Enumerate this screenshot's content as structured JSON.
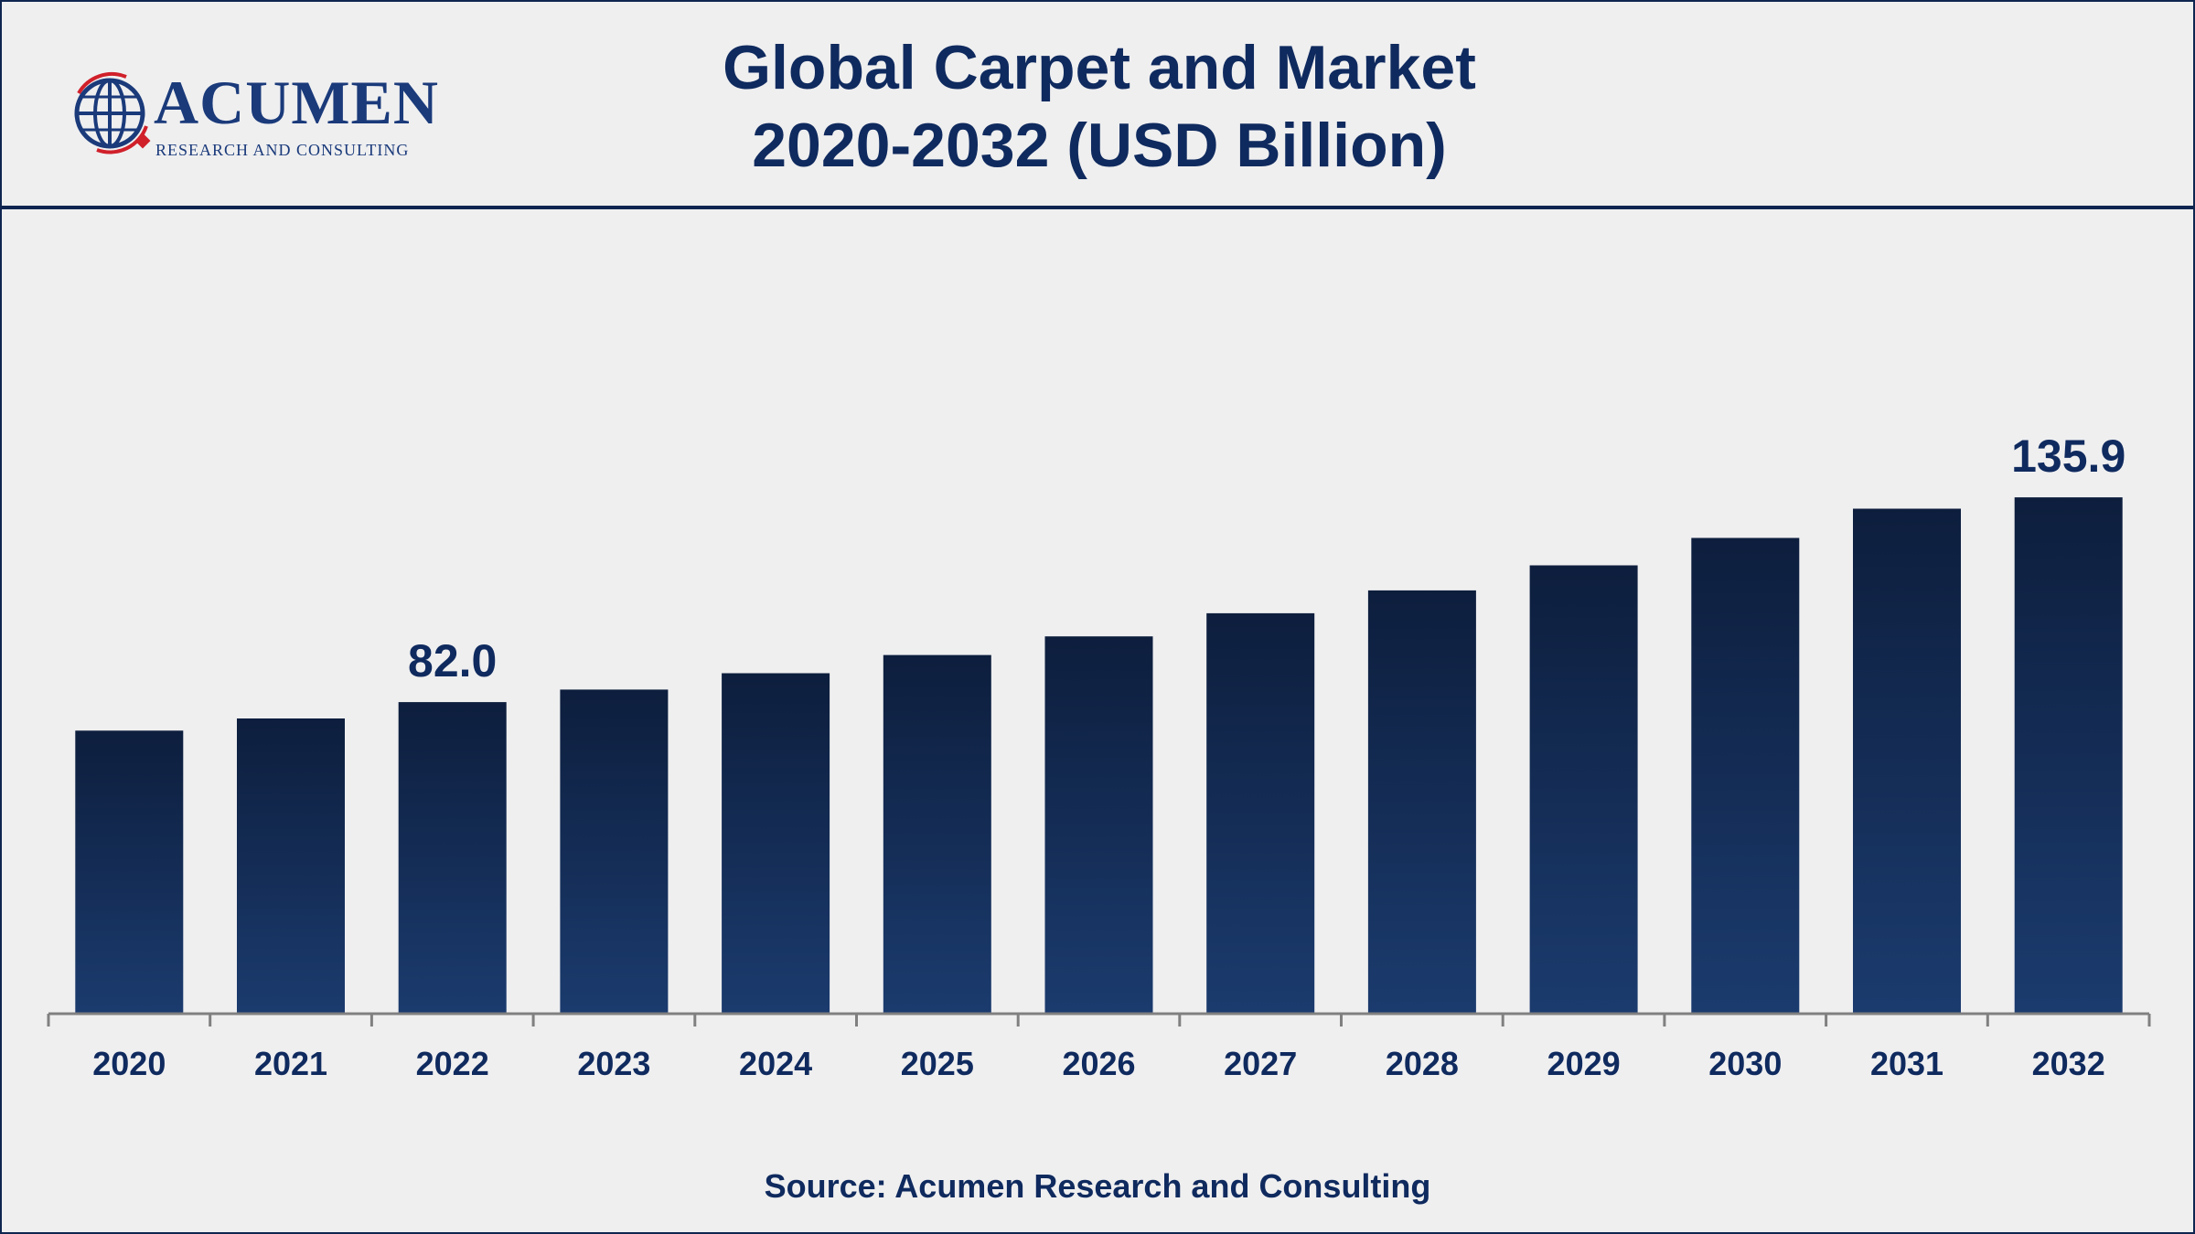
{
  "logo": {
    "name": "ACUMEN",
    "tagline": "RESEARCH AND CONSULTING"
  },
  "chart_data": {
    "type": "bar",
    "title_line1": "Global Carpet and Market",
    "title_line2": "2020-2032 (USD Billion)",
    "xlabel": "",
    "ylabel": "",
    "categories": [
      "2020",
      "2021",
      "2022",
      "2023",
      "2024",
      "2025",
      "2026",
      "2027",
      "2028",
      "2029",
      "2030",
      "2031",
      "2032"
    ],
    "values": [
      74.5,
      77.7,
      82.0,
      85.3,
      89.6,
      94.4,
      99.3,
      105.4,
      111.4,
      118.0,
      125.2,
      132.9,
      135.9
    ],
    "data_labels": [
      {
        "category": "2022",
        "text": "82.0"
      },
      {
        "category": "2032",
        "text": "135.9"
      }
    ],
    "ylim": [
      0,
      172
    ],
    "grid": false,
    "legend": "none",
    "colors": {
      "bar_top": "#0d1e3d",
      "bar_bottom": "#1b3b6e",
      "axis": "#808080",
      "text": "#0f2a5e"
    }
  },
  "source": "Source: Acumen Research and Consulting"
}
